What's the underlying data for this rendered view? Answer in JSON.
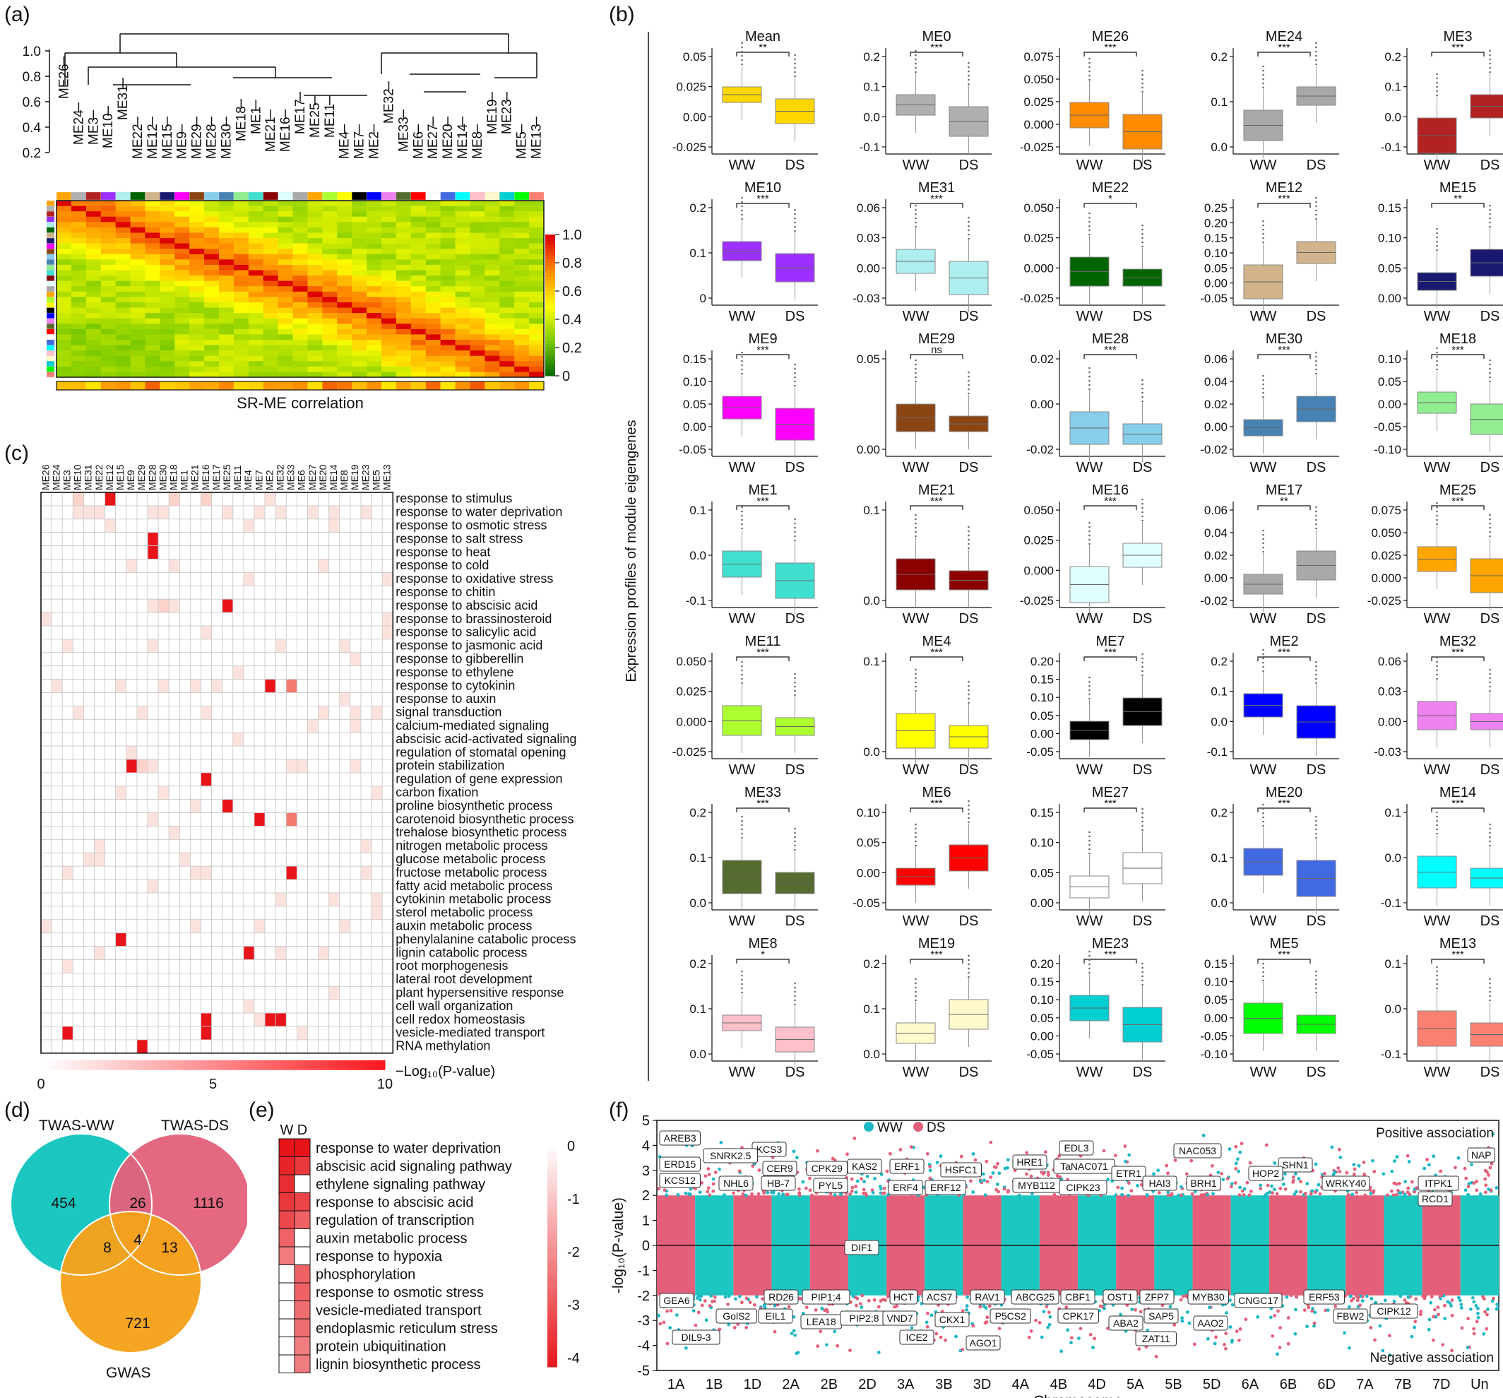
{
  "panels": {
    "a": {
      "letter": "(a)",
      "dendrogram_axis_ticks": [
        "1.0",
        "0.8",
        "0.6",
        "0.4",
        "0.2"
      ],
      "leaf_order": [
        "ME26",
        "ME24",
        "ME3",
        "ME10",
        "ME31",
        "ME22",
        "ME12",
        "ME15",
        "ME9",
        "ME29",
        "ME28",
        "ME30",
        "ME18",
        "ME1",
        "ME21",
        "ME16",
        "ME17",
        "ME25",
        "ME11",
        "ME4",
        "ME7",
        "ME2",
        "ME32",
        "ME33",
        "ME6",
        "ME27",
        "ME20",
        "ME14",
        "ME8",
        "ME19",
        "ME23",
        "ME5",
        "ME13"
      ],
      "module_colors": [
        "#FFA500",
        "#B0B0B0",
        "#B22222",
        "#9B30FF",
        "#AFEEEE",
        "#006400",
        "#D2B48C",
        "#191970",
        "#FF00FF",
        "#8B4513",
        "#87CEEB",
        "#4682B4",
        "#90EE90",
        "#40E0D0",
        "#8B0000",
        "#E0FFFF",
        "#A9A9A9",
        "#FFA500",
        "#ADFF2F",
        "#FFFF00",
        "#000000",
        "#0000FF",
        "#EE82EE",
        "#556B2F",
        "#FF0000",
        "#FFFFFF",
        "#4169E1",
        "#00FFFF",
        "#FFC0CB",
        "#FFFACD",
        "#00CED1",
        "#00FF00",
        "#FA8072"
      ],
      "colorbar_ticks": [
        "1.0",
        "0.8",
        "0.6",
        "0.4",
        "0.2",
        "0"
      ],
      "bottom_label": "SR-ME correlation"
    },
    "b": {
      "letter": "(b)",
      "y_axis_label": "Expression profiles of module eigengenes",
      "x_categories": [
        "WW",
        "DS"
      ],
      "plots": [
        {
          "title": "Mean",
          "sig": "**",
          "color": "#FFD700",
          "ticks": [
            "0.05",
            "0.025",
            "0.00",
            "-0.025"
          ]
        },
        {
          "title": "ME0",
          "sig": "***",
          "color": "#B0B0B0",
          "ticks": [
            "0.2",
            "0.1",
            "0.0",
            "-0.1"
          ]
        },
        {
          "title": "ME26",
          "sig": "***",
          "color": "#FF8C00",
          "ticks": [
            "0.075",
            "0.050",
            "0.025",
            "0.000",
            "-0.025"
          ]
        },
        {
          "title": "ME24",
          "sig": "***",
          "color": "#A8A8A8",
          "ticks": [
            "0.2",
            "0.1",
            "0.0"
          ]
        },
        {
          "title": "ME3",
          "sig": "***",
          "color": "#B22222",
          "ticks": [
            "0.2",
            "0.1",
            "0.0",
            "-0.1"
          ]
        },
        {
          "title": "ME10",
          "sig": "***",
          "color": "#9B30FF",
          "ticks": [
            "0.2",
            "0.1",
            "0"
          ]
        },
        {
          "title": "ME31",
          "sig": "***",
          "color": "#AFEEEE",
          "ticks": [
            "0.06",
            "0.03",
            "0.00",
            "-0.03"
          ]
        },
        {
          "title": "ME22",
          "sig": "*",
          "color": "#006400",
          "ticks": [
            "0.050",
            "0.025",
            "0.000",
            "-0.025"
          ]
        },
        {
          "title": "ME12",
          "sig": "***",
          "color": "#D2B48C",
          "ticks": [
            "0.25",
            "0.20",
            "0.15",
            "0.10",
            "0.05",
            "0.00",
            "-0.05"
          ]
        },
        {
          "title": "ME15",
          "sig": "**",
          "color": "#191970",
          "ticks": [
            "0.15",
            "0.10",
            "0.05",
            "0.00"
          ]
        },
        {
          "title": "ME9",
          "sig": "***",
          "color": "#FF00FF",
          "ticks": [
            "0.15",
            "0.10",
            "0.05",
            "0.00",
            "-0.05"
          ]
        },
        {
          "title": "ME29",
          "sig": "ns",
          "color": "#8B4513",
          "ticks": [
            "0.05",
            "0.00"
          ]
        },
        {
          "title": "ME28",
          "sig": "***",
          "color": "#87CEEB",
          "ticks": [
            "0.02",
            "0.00",
            "-0.02"
          ]
        },
        {
          "title": "ME30",
          "sig": "***",
          "color": "#4682B4",
          "ticks": [
            "0.06",
            "0.04",
            "0.02",
            "0.00",
            "-0.02"
          ]
        },
        {
          "title": "ME18",
          "sig": "***",
          "color": "#90EE90",
          "ticks": [
            "0.10",
            "0.05",
            "0.00",
            "-0.05",
            "-0.10"
          ]
        },
        {
          "title": "ME1",
          "sig": "***",
          "color": "#40E0D0",
          "ticks": [
            "0.1",
            "0.0",
            "-0.1"
          ]
        },
        {
          "title": "ME21",
          "sig": "***",
          "color": "#8B0000",
          "ticks": [
            "0.1",
            "0.0"
          ]
        },
        {
          "title": "ME16",
          "sig": "***",
          "color": "#E0FFFF",
          "ticks": [
            "0.050",
            "0.025",
            "0.000",
            "-0.025"
          ]
        },
        {
          "title": "ME17",
          "sig": "**",
          "color": "#A9A9A9",
          "ticks": [
            "0.06",
            "0.04",
            "0.02",
            "0.00",
            "-0.02"
          ]
        },
        {
          "title": "ME25",
          "sig": "***",
          "color": "#FFA500",
          "ticks": [
            "0.075",
            "0.050",
            "0.025",
            "0.000",
            "-0.025"
          ]
        },
        {
          "title": "ME11",
          "sig": "***",
          "color": "#ADFF2F",
          "ticks": [
            "0.050",
            "0.025",
            "0.000",
            "-0.025"
          ]
        },
        {
          "title": "ME4",
          "sig": "***",
          "color": "#FFFF00",
          "ticks": [
            "0.1",
            "0.0"
          ]
        },
        {
          "title": "ME7",
          "sig": "***",
          "color": "#000000",
          "ticks": [
            "0.20",
            "0.15",
            "0.10",
            "0.05",
            "0.00",
            "-0.05"
          ]
        },
        {
          "title": "ME2",
          "sig": "***",
          "color": "#0000FF",
          "ticks": [
            "0.2",
            "0.1",
            "0.0",
            "-0.1"
          ]
        },
        {
          "title": "ME32",
          "sig": "***",
          "color": "#EE82EE",
          "ticks": [
            "0.06",
            "0.03",
            "0.00",
            "-0.03"
          ]
        },
        {
          "title": "ME33",
          "sig": "***",
          "color": "#556B2F",
          "ticks": [
            "0.2",
            "0.1",
            "0.0"
          ]
        },
        {
          "title": "ME6",
          "sig": "***",
          "color": "#FF0000",
          "ticks": [
            "0.10",
            "0.05",
            "0.00",
            "-0.05"
          ]
        },
        {
          "title": "ME27",
          "sig": "***",
          "color": "#FFFFFF",
          "ticks": [
            "0.15",
            "0.10",
            "0.05",
            "0.00"
          ]
        },
        {
          "title": "ME20",
          "sig": "***",
          "color": "#4169E1",
          "ticks": [
            "0.2",
            "0.1",
            "0.0"
          ]
        },
        {
          "title": "ME14",
          "sig": "***",
          "color": "#00FFFF",
          "ticks": [
            "0.1",
            "0.0",
            "-0.1"
          ]
        },
        {
          "title": "ME8",
          "sig": "*",
          "color": "#FFC0CB",
          "ticks": [
            "0.2",
            "0.1",
            "0.0"
          ]
        },
        {
          "title": "ME19",
          "sig": "***",
          "color": "#FFFACD",
          "ticks": [
            "0.2",
            "0.1",
            "0.0"
          ]
        },
        {
          "title": "ME23",
          "sig": "***",
          "color": "#00CED1",
          "ticks": [
            "0.20",
            "0.15",
            "0.10",
            "0.05",
            "0.00",
            "-0.05"
          ]
        },
        {
          "title": "ME5",
          "sig": "***",
          "color": "#00FF00",
          "ticks": [
            "0.15",
            "0.10",
            "0.05",
            "0.00",
            "-0.05",
            "-0.10"
          ]
        },
        {
          "title": "ME13",
          "sig": "***",
          "color": "#FA8072",
          "ticks": [
            "0.1",
            "0.0",
            "-0.1"
          ]
        }
      ]
    },
    "c": {
      "letter": "(c)",
      "columns": [
        "ME26",
        "ME24",
        "ME3",
        "ME10",
        "ME31",
        "ME22",
        "ME12",
        "ME15",
        "ME9",
        "ME29",
        "ME28",
        "ME30",
        "ME18",
        "ME1",
        "ME21",
        "ME16",
        "ME17",
        "ME25",
        "ME11",
        "ME4",
        "ME7",
        "ME2",
        "ME32",
        "ME33",
        "ME6",
        "ME27",
        "ME20",
        "ME14",
        "ME8",
        "ME19",
        "ME23",
        "ME5",
        "ME13"
      ],
      "terms": [
        "response to stimulus",
        "response to water deprivation",
        "response to osmotic stress",
        "response to salt stress",
        "response to heat",
        "response to cold",
        "response to oxidative stress",
        "response to chitin",
        "response to abscisic acid",
        "response to brassinosteroid",
        "response to salicylic acid",
        "response to jasmonic acid",
        "response to gibberellin",
        "response to ethylene",
        "response to cytokinin",
        "response to auxin",
        "signal transduction",
        "calcium-mediated signaling",
        "abscisic acid-activated signaling",
        "regulation of stomatal opening",
        "protein stabilization",
        "regulation of gene expression",
        "carbon fixation",
        "proline biosynthetic process",
        "carotenoid biosynthetic process",
        "trehalose biosynthetic process",
        "nitrogen metabolic process",
        "glucose metabolic process",
        "fructose metabolic process",
        "fatty acid metabolic process",
        "cytokinin metabolic process",
        "sterol metabolic process",
        "auxin metabolic process",
        "phenylalanine catabolic process",
        "lignin catabolic process",
        "root morphogenesis",
        "lateral root development",
        "plant hypersensitive response",
        "cell wall organization",
        "cell redox homeostasis",
        "vesicle-mediated transport",
        "RNA methylation"
      ],
      "colorbar_ticks": [
        "0",
        "5",
        "10"
      ],
      "colorbar_label": "−Log₁₀(P-value)"
    },
    "d": {
      "letter": "(d)",
      "labels": {
        "ww": "TWAS-WW",
        "ds": "TWAS-DS",
        "gwas": "GWAS"
      },
      "counts": {
        "ww_only": "454",
        "ww_ds": "26",
        "ds_only": "1116",
        "ww_gwas": "8",
        "all": "4",
        "ds_gwas": "13",
        "gwas_only": "721"
      },
      "colors": {
        "ww": "#1CC7C1",
        "ds": "#E4607A",
        "gwas": "#F5A21B"
      }
    },
    "e": {
      "letter": "(e)",
      "columns": [
        "W",
        "D"
      ],
      "terms": [
        "response to water deprivation",
        "abscisic acid signaling pathway",
        "ethylene signaling pathway",
        "response to abscisic acid",
        "regulation of transcription",
        "auxin metabolic process",
        "response to hypoxia",
        "phosphorylation",
        "response to osmotic stress",
        "vesicle-mediated transport",
        "endoplasmic reticulum stress",
        "protein ubiquitination",
        "lignin biosynthetic process"
      ],
      "values_W": [
        4.5,
        4.2,
        4.0,
        3.8,
        3.5,
        3.0,
        2.5,
        0,
        0,
        0,
        0,
        0,
        0
      ],
      "values_D": [
        4.5,
        3.8,
        0,
        3.6,
        3.0,
        0,
        0,
        3.0,
        3.0,
        2.8,
        2.8,
        2.5,
        2.5
      ],
      "colorbar_ticks": [
        "0",
        "-1",
        "-2",
        "-3",
        "-4"
      ]
    },
    "f": {
      "letter": "(f)",
      "legend": [
        {
          "name": "WW",
          "color": "#1CB8C4"
        },
        {
          "name": "DS",
          "color": "#E4607A"
        }
      ],
      "y_label": "-log₁₀(P-value)",
      "x_label": "Chromosome",
      "y_ticks": [
        "5",
        "4",
        "3",
        "2",
        "1",
        "0",
        "-1",
        "-2",
        "-3",
        "-4",
        "-5"
      ],
      "chromosomes": [
        "1A",
        "1B",
        "1D",
        "2A",
        "2B",
        "2D",
        "3A",
        "3B",
        "3D",
        "4A",
        "4B",
        "4D",
        "5A",
        "5B",
        "5D",
        "6A",
        "6B",
        "6D",
        "7A",
        "7B",
        "7D",
        "Un"
      ],
      "positive_note": "Positive association",
      "negative_note": "Negative association",
      "genes_top": [
        "AREB3",
        "KCS3",
        "ERD15",
        "SNRK2.5",
        "CER9",
        "CPK29",
        "KAS2",
        "ERF1",
        "HSFC1",
        "HRE1",
        "EDL3",
        "TaNAC071",
        "ETR1",
        "NAC053",
        "SHN1",
        "NAP",
        "KCS12",
        "NHL6",
        "HB-7",
        "PYL5",
        "ERF4",
        "ERF12",
        "MYB112",
        "CIPK23",
        "HAI3",
        "BRH1",
        "HOP2",
        "WRKY40",
        "ITPK1",
        "RCD1"
      ],
      "genes_mid": [
        "DIF1"
      ],
      "genes_bottom": [
        "GEA6",
        "RD26",
        "PIP1;4",
        "HCT",
        "ACS7",
        "RAV1",
        "ABCG25",
        "CBF1",
        "OST1",
        "ZFP7",
        "MYB30",
        "CNGC17",
        "ERF53",
        "CIPK12",
        "GolS2",
        "EIL1",
        "LEA18",
        "PIP2;8",
        "VND7",
        "CKX1",
        "P5CS2",
        "CPK17",
        "ABA2",
        "SAP5",
        "AAO2",
        "FBW2",
        "DIL9-3",
        "ICE2",
        "AGO1",
        "ZAT11"
      ]
    }
  }
}
